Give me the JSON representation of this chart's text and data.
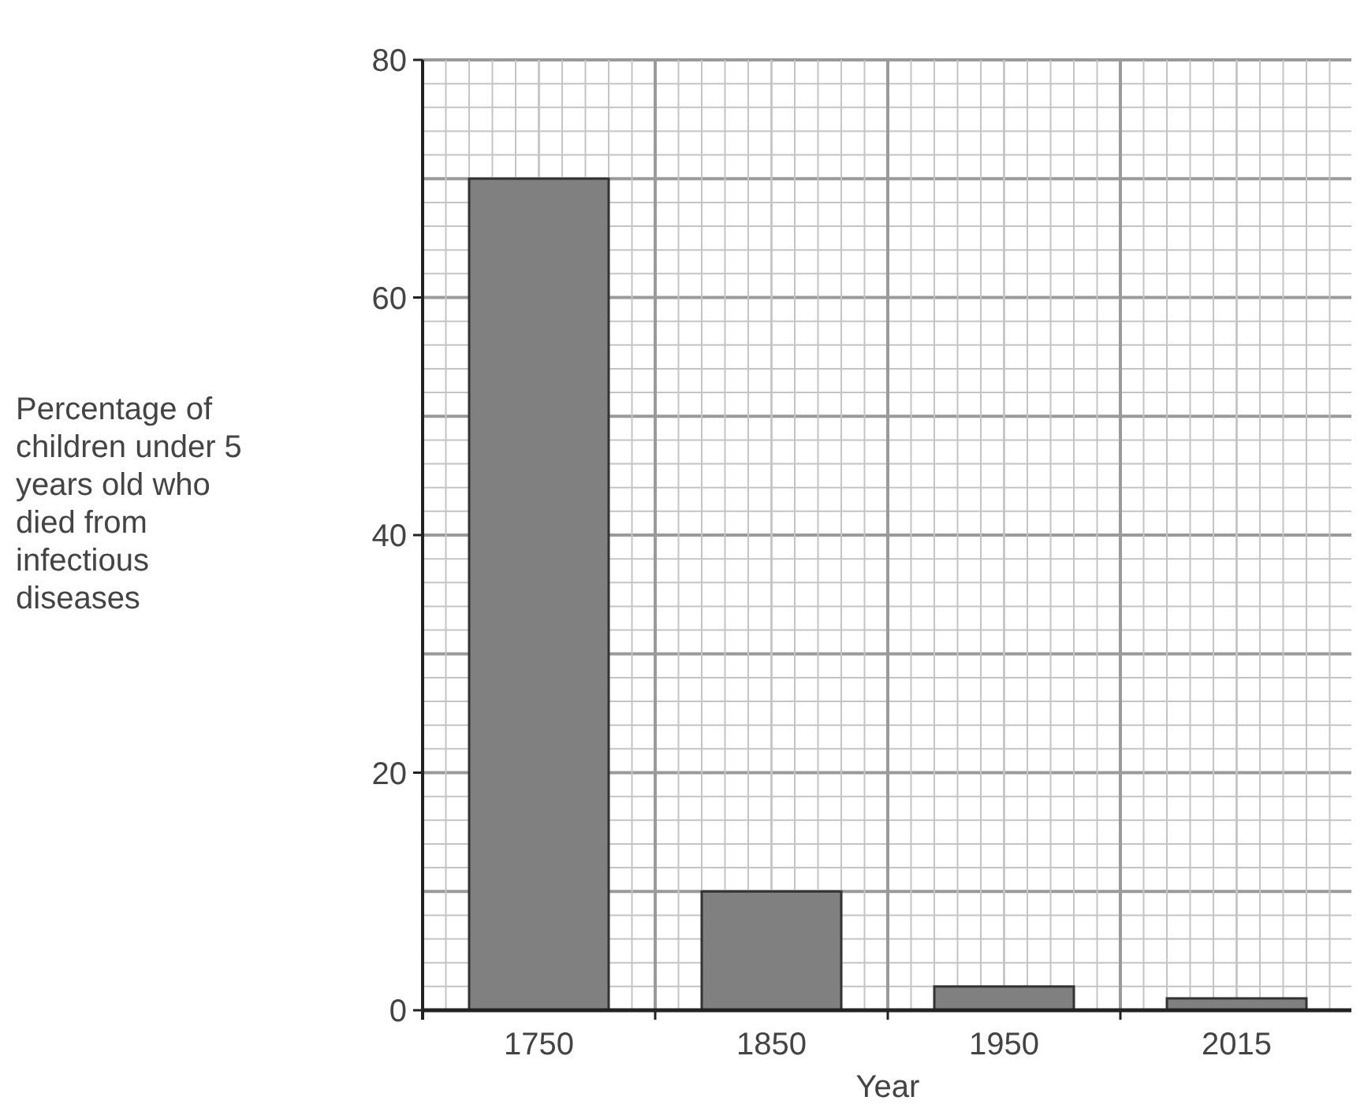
{
  "chart_data": {
    "type": "bar",
    "xlabel": "Year",
    "ylabel": "Percentage of children under 5 years old who died from infectious diseases",
    "categories": [
      "1750",
      "1850",
      "1950",
      "2015"
    ],
    "values": [
      70,
      10,
      2,
      1
    ],
    "color": "#808080",
    "ylim": [
      0,
      80
    ],
    "yticks": [
      0,
      20,
      40,
      60,
      80
    ],
    "grid": true
  }
}
